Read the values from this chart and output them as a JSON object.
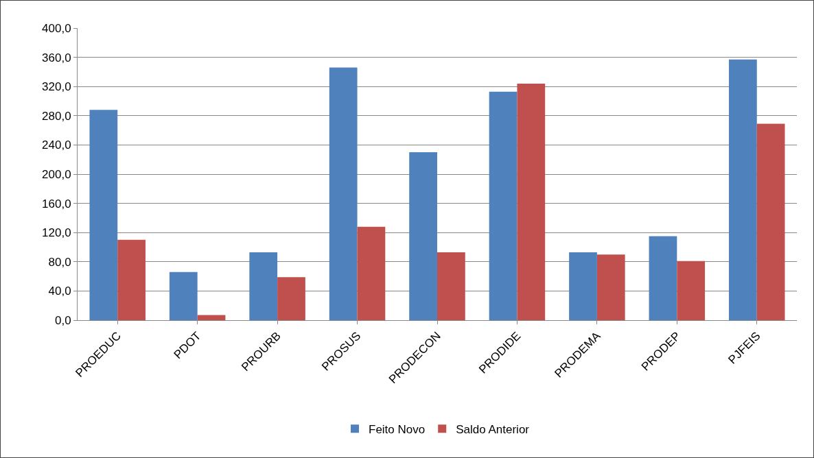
{
  "chart_data": {
    "type": "bar",
    "categories": [
      "PROEDUC",
      "PDOT",
      "PROURB",
      "PROSUS",
      "PRODECON",
      "PRODIDE",
      "PRODEMA",
      "PRODEP",
      "PJFEIS"
    ],
    "series": [
      {
        "name": "Feito Novo",
        "color": "#4f81bd",
        "values": [
          288,
          66,
          93,
          346,
          230,
          313,
          93,
          115,
          357
        ]
      },
      {
        "name": "Saldo Anterior",
        "color": "#c0504d",
        "values": [
          110,
          7,
          59,
          128,
          93,
          324,
          90,
          81,
          269
        ]
      }
    ],
    "ylim": [
      0,
      400
    ],
    "yticks": [
      {
        "value": 0,
        "label": "0,0"
      },
      {
        "value": 40,
        "label": "40,0"
      },
      {
        "value": 80,
        "label": "80,0"
      },
      {
        "value": 120,
        "label": "120,0"
      },
      {
        "value": 160,
        "label": "160,0"
      },
      {
        "value": 200,
        "label": "200,0"
      },
      {
        "value": 240,
        "label": "240,0"
      },
      {
        "value": 280,
        "label": "280,0"
      },
      {
        "value": 320,
        "label": "320,0"
      },
      {
        "value": 360,
        "label": "360,0"
      },
      {
        "value": 400,
        "label": "400,0"
      }
    ],
    "grid": "y",
    "legend": "bottom"
  }
}
